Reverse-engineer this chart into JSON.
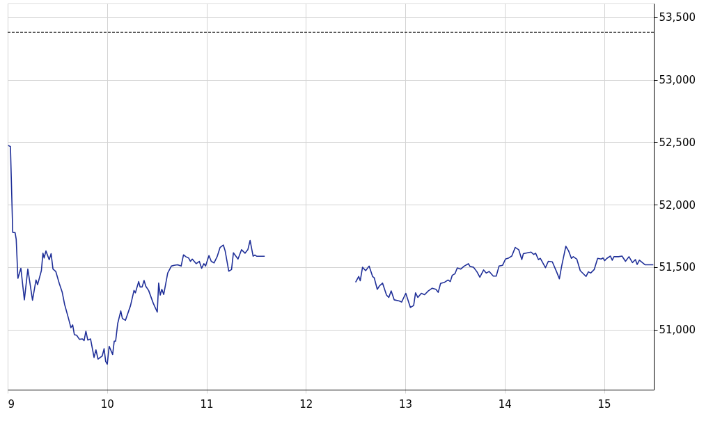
{
  "chart_data": {
    "type": "line",
    "xlim": [
      9,
      15.5
    ],
    "xticks": [
      9,
      10,
      11,
      12,
      13,
      14,
      15
    ],
    "ylim": [
      50520,
      53610
    ],
    "yticks": [
      {
        "value": 51000,
        "label": "51,000"
      },
      {
        "value": 51500,
        "label": "51,500"
      },
      {
        "value": 52000,
        "label": "52,000"
      },
      {
        "value": 52500,
        "label": "52,500"
      },
      {
        "value": 53000,
        "label": "53,000"
      },
      {
        "value": 53500,
        "label": "53,500"
      }
    ],
    "grid": true,
    "marker": "none",
    "line_style": "solid",
    "ref_lines": [
      {
        "axis": "y",
        "value": 53380,
        "color": "#000000",
        "line_style": "dashed"
      }
    ],
    "series": [
      {
        "color": "#1f2f98",
        "x": [
          9.005,
          9.028,
          9.051,
          9.075,
          9.086,
          9.103,
          9.133,
          9.168,
          9.203,
          9.25,
          9.285,
          9.301,
          9.339,
          9.355,
          9.367,
          9.385,
          9.418,
          9.437,
          9.456,
          9.484,
          9.519,
          9.549,
          9.573,
          9.612,
          9.636,
          9.654,
          9.671,
          9.694,
          9.722,
          9.752,
          9.769,
          9.787,
          9.806,
          9.834,
          9.869,
          9.888,
          9.909,
          9.951,
          9.97,
          9.986,
          10.002,
          10.021,
          10.056,
          10.072,
          10.086,
          10.107,
          10.138,
          10.154,
          10.185,
          10.236,
          10.271,
          10.285,
          10.318,
          10.332,
          10.353,
          10.372,
          10.39,
          10.418,
          10.465,
          10.505,
          10.519,
          10.535,
          10.551,
          10.57,
          10.61,
          10.647,
          10.675,
          10.71,
          10.745,
          10.769,
          10.792,
          10.82,
          10.839,
          10.857,
          10.897,
          10.928,
          10.951,
          10.974,
          10.991,
          11.025,
          11.048,
          11.076,
          11.107,
          11.137,
          11.17,
          11.188,
          11.224,
          11.252,
          11.271,
          11.317,
          11.353,
          11.388,
          11.416,
          11.439,
          11.469,
          11.488,
          11.504,
          11.586,
          12.0,
          12.5,
          12.531,
          12.547,
          12.57,
          12.601,
          12.636,
          12.671,
          12.687,
          12.718,
          12.741,
          12.771,
          12.811,
          12.834,
          12.858,
          12.888,
          12.939,
          12.963,
          13.005,
          13.051,
          13.084,
          13.103,
          13.126,
          13.161,
          13.194,
          13.231,
          13.271,
          13.308,
          13.331,
          13.355,
          13.395,
          13.43,
          13.453,
          13.472,
          13.5,
          13.523,
          13.558,
          13.593,
          13.635,
          13.651,
          13.686,
          13.721,
          13.75,
          13.788,
          13.815,
          13.843,
          13.885,
          13.915,
          13.943,
          13.978,
          14.008,
          14.041,
          14.071,
          14.106,
          14.141,
          14.172,
          14.188,
          14.265,
          14.292,
          14.311,
          14.34,
          14.358,
          14.41,
          14.439,
          14.479,
          14.522,
          14.55,
          14.573,
          14.615,
          14.643,
          14.671,
          14.69,
          14.725,
          14.76,
          14.818,
          14.842,
          14.865,
          14.9,
          14.935,
          14.97,
          14.989,
          15.005,
          15.028,
          15.063,
          15.082,
          15.099,
          15.145,
          15.18,
          15.215,
          15.25,
          15.285,
          15.315,
          15.332,
          15.355,
          15.413,
          15.495
        ],
        "values": [
          52474,
          52465,
          51779,
          51776,
          51723,
          51411,
          51491,
          51239,
          51485,
          51236,
          51398,
          51360,
          51472,
          51612,
          51574,
          51630,
          51560,
          51608,
          51485,
          51466,
          51370,
          51299,
          51202,
          51090,
          51016,
          51038,
          50960,
          50956,
          50923,
          50926,
          50913,
          50988,
          50917,
          50926,
          50778,
          50839,
          50765,
          50789,
          50848,
          50746,
          50724,
          50867,
          50802,
          50908,
          50908,
          51049,
          51150,
          51090,
          51075,
          51193,
          51314,
          51295,
          51385,
          51342,
          51342,
          51394,
          51347,
          51314,
          51211,
          51141,
          51373,
          51277,
          51323,
          51282,
          51453,
          51509,
          51515,
          51519,
          51509,
          51599,
          51584,
          51574,
          51547,
          51565,
          51528,
          51547,
          51491,
          51528,
          51509,
          51593,
          51547,
          51534,
          51584,
          51658,
          51677,
          51630,
          51468,
          51481,
          51615,
          51565,
          51640,
          51612,
          51640,
          51714,
          51588,
          51597,
          51588,
          51588,
          null,
          51379,
          51426,
          51392,
          51500,
          51472,
          51509,
          51426,
          51416,
          51323,
          51351,
          51373,
          51277,
          51258,
          51310,
          51239,
          51230,
          51221,
          51291,
          51178,
          51193,
          51295,
          51258,
          51291,
          51280,
          51310,
          51332,
          51323,
          51299,
          51370,
          51379,
          51398,
          51385,
          51435,
          51448,
          51494,
          51485,
          51509,
          51528,
          51506,
          51500,
          51463,
          51420,
          51478,
          51453,
          51466,
          51429,
          51429,
          51509,
          51515,
          51565,
          51574,
          51589,
          51658,
          51640,
          51561,
          51608,
          51621,
          51602,
          51612,
          51560,
          51571,
          51496,
          51547,
          51543,
          51463,
          51407,
          51509,
          51668,
          51630,
          51571,
          51584,
          51565,
          51472,
          51426,
          51463,
          51453,
          51481,
          51571,
          51565,
          51574,
          51552,
          51571,
          51589,
          51556,
          51584,
          51584,
          51589,
          51547,
          51584,
          51537,
          51561,
          51522,
          51556,
          51519,
          51519
        ]
      }
    ]
  }
}
